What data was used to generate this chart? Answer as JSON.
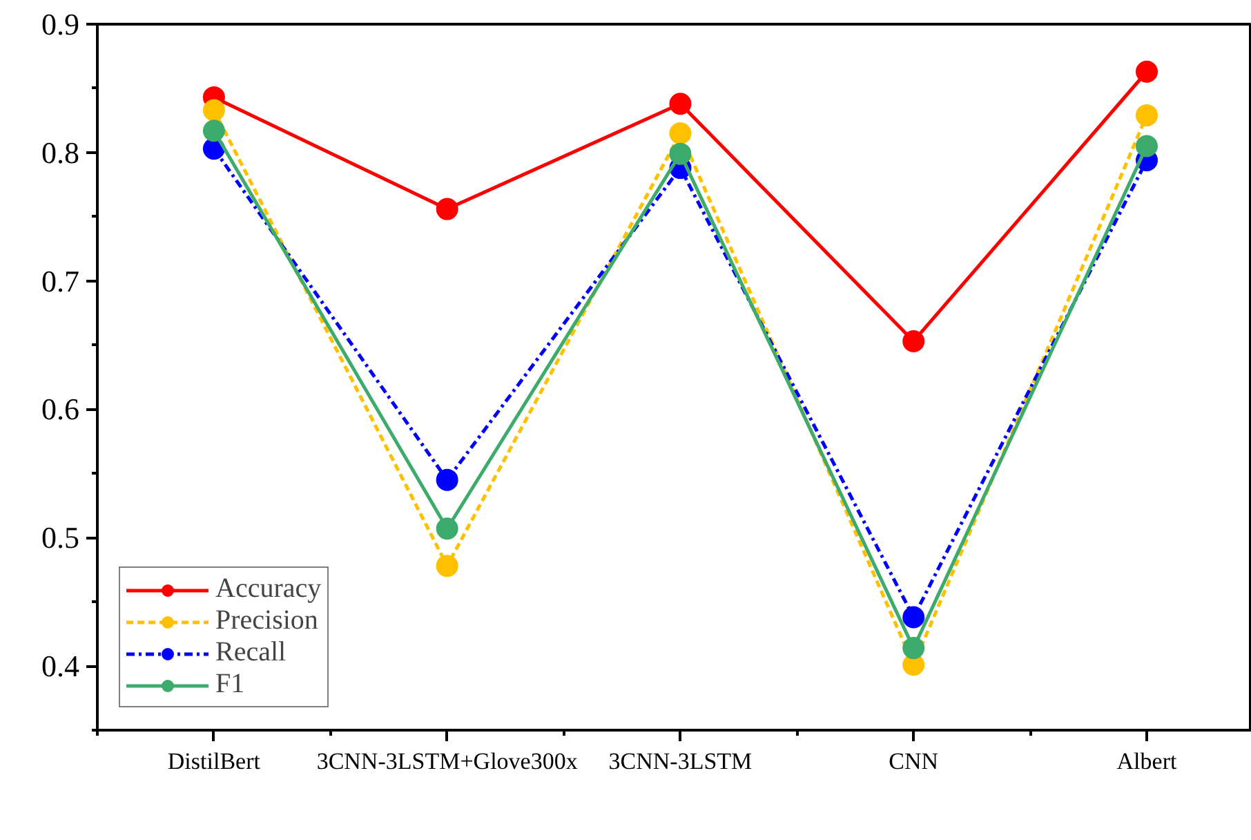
{
  "chart_data": {
    "type": "line",
    "categories": [
      "DistilBert",
      "3CNN-3LSTM+Glove300x",
      "3CNN-3LSTM",
      "CNN",
      "Albert"
    ],
    "series": [
      {
        "name": "Accuracy",
        "color": "#ff0000",
        "line_style": "solid",
        "values": [
          0.843,
          0.756,
          0.838,
          0.653,
          0.863
        ]
      },
      {
        "name": "Precision",
        "color": "#ffc000",
        "line_style": "dashed",
        "values": [
          0.833,
          0.478,
          0.815,
          0.401,
          0.829
        ]
      },
      {
        "name": "Recall",
        "color": "#0000ff",
        "line_style": "dashdot",
        "values": [
          0.803,
          0.545,
          0.788,
          0.438,
          0.794
        ]
      },
      {
        "name": "F1",
        "color": "#3cab6b",
        "line_style": "solid",
        "values": [
          0.817,
          0.507,
          0.799,
          0.414,
          0.805
        ]
      }
    ],
    "ylim": [
      0.35,
      0.9
    ],
    "yticks": [
      0.4,
      0.5,
      0.6,
      0.7,
      0.8,
      0.9
    ],
    "marker": "circle",
    "grid": false,
    "legend": "bottom left"
  }
}
